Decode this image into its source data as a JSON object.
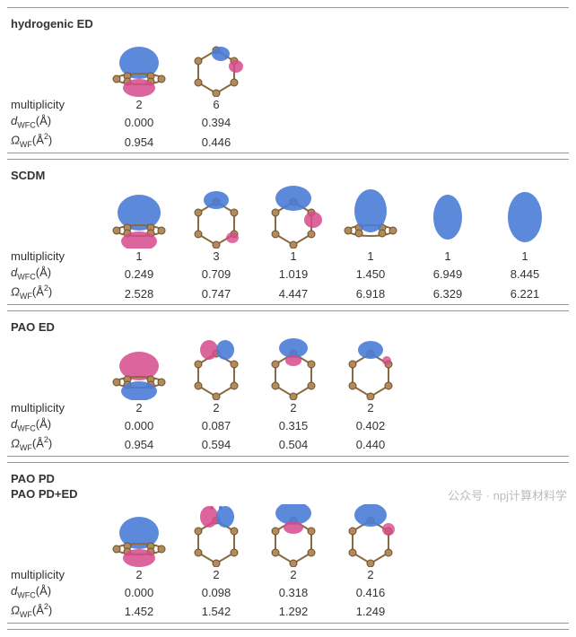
{
  "colors": {
    "lobe_blue": "#4a7cd6",
    "lobe_pink": "#d64a8c",
    "atom_fill": "#b38b5a",
    "atom_stroke": "#6b4f2e",
    "bond": "#8a6a3f",
    "rule": "#999999",
    "text": "#333333",
    "watermark": "#bbbbbb",
    "background": "#ffffff"
  },
  "typography": {
    "font_family": "Arial, sans-serif",
    "base_fontsize_pt": 10,
    "label_fontsize_pt": 10,
    "label_weight": "bold"
  },
  "row_labels": {
    "multiplicity": "multiplicity",
    "d": "d",
    "d_sub": "WFC",
    "d_unit_left": "(",
    "d_unit_glyph": "Å",
    "d_unit_right": ")",
    "omega": "Ω",
    "omega_sub": "WF",
    "omega_unit_left": "(",
    "omega_unit_glyph": "Å",
    "omega_sup": "2",
    "omega_unit_right": ")"
  },
  "panels": [
    {
      "method": [
        "hydrogenic ED"
      ],
      "columns": [
        {
          "viz": "orb-top-bottom",
          "multiplicity": "2",
          "d": "0.000",
          "omega": "0.954"
        },
        {
          "viz": "ring-small-side",
          "multiplicity": "6",
          "d": "0.394",
          "omega": "0.446"
        }
      ]
    },
    {
      "method": [
        "SCDM"
      ],
      "columns": [
        {
          "viz": "orb-top-bottom-big",
          "multiplicity": "1",
          "d": "0.249",
          "omega": "2.528"
        },
        {
          "viz": "ring-top-blue",
          "multiplicity": "3",
          "d": "0.709",
          "omega": "0.747"
        },
        {
          "viz": "ring-blue-pink-side",
          "multiplicity": "1",
          "d": "1.019",
          "omega": "4.447"
        },
        {
          "viz": "orb-top-blue-big",
          "multiplicity": "1",
          "d": "1.450",
          "omega": "6.918"
        },
        {
          "viz": "blue-ellipse",
          "multiplicity": "1",
          "d": "6.949",
          "omega": "6.329"
        },
        {
          "viz": "blue-ellipse-big",
          "multiplicity": "1",
          "d": "8.445",
          "omega": "6.221"
        }
      ]
    },
    {
      "method": [
        "PAO ED"
      ],
      "columns": [
        {
          "viz": "orb-pink-top-blue-bottom",
          "multiplicity": "2",
          "d": "0.000",
          "omega": "0.954"
        },
        {
          "viz": "ring-pink-blue-split",
          "multiplicity": "2",
          "d": "0.087",
          "omega": "0.594"
        },
        {
          "viz": "ring-blue-pink-top",
          "multiplicity": "2",
          "d": "0.315",
          "omega": "0.504"
        },
        {
          "viz": "ring-blue-top-small",
          "multiplicity": "2",
          "d": "0.402",
          "omega": "0.440"
        }
      ]
    },
    {
      "method": [
        "PAO PD",
        "PAO PD+ED"
      ],
      "columns": [
        {
          "viz": "orb-top-bottom",
          "multiplicity": "2",
          "d": "0.000",
          "omega": "1.452"
        },
        {
          "viz": "ring-pink-blue-split-dots",
          "multiplicity": "2",
          "d": "0.098",
          "omega": "1.542"
        },
        {
          "viz": "ring-blue-pink-top-big",
          "multiplicity": "2",
          "d": "0.318",
          "omega": "1.292"
        },
        {
          "viz": "ring-blue-top",
          "multiplicity": "2",
          "d": "0.416",
          "omega": "1.249"
        }
      ]
    }
  ],
  "watermark": "公众号 · npj计算材料学"
}
